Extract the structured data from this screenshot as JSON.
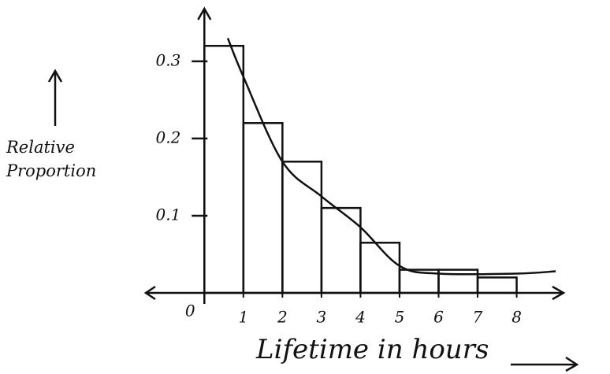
{
  "chart_data": {
    "type": "histogram",
    "xlabel": "Lifetime in hours",
    "ylabel": "Relative Proportion",
    "bins": [
      0,
      1,
      2,
      3,
      4,
      5,
      6,
      7,
      8
    ],
    "values": [
      0.32,
      0.22,
      0.17,
      0.11,
      0.065,
      0.03,
      0.03,
      0.02
    ],
    "curve": {
      "x": [
        0.6,
        1,
        2,
        3,
        4,
        5,
        6,
        8,
        9
      ],
      "values": [
        0.33,
        0.28,
        0.17,
        0.125,
        0.085,
        0.035,
        0.025,
        0.025,
        0.028
      ]
    },
    "color": "#111111",
    "xlim": [
      -1.5,
      9.2
    ],
    "ylim": [
      0,
      0.36
    ],
    "xticks": [
      0,
      1,
      2,
      3,
      4,
      5,
      6,
      7,
      8
    ],
    "yticks": [
      0.1,
      0.2,
      0.3
    ]
  }
}
